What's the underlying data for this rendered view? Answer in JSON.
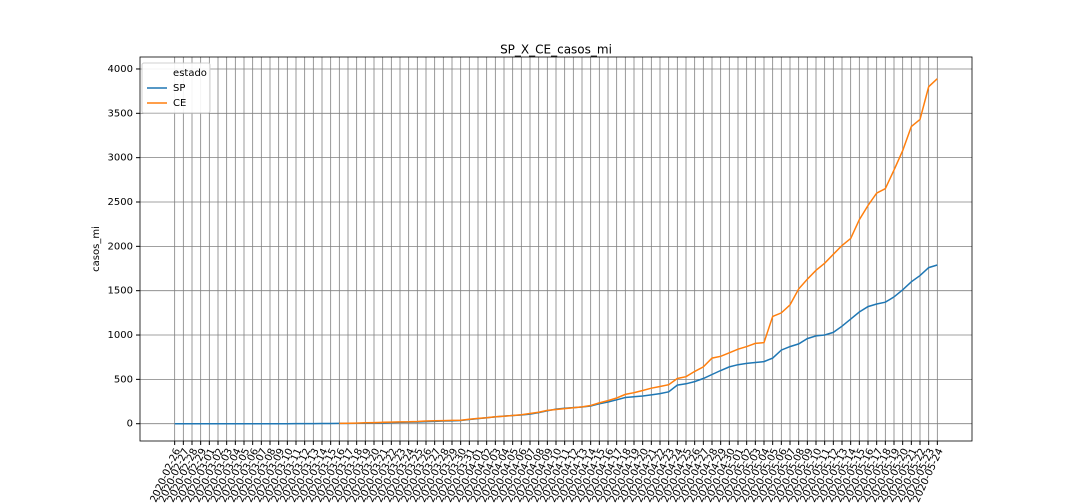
{
  "chart_data": {
    "type": "line",
    "title": "SP_X_CE_casos_mi",
    "y_label": "casos_mi",
    "categories": [
      "2020-02-26",
      "2020-02-27",
      "2020-02-28",
      "2020-02-29",
      "2020-03-01",
      "2020-03-02",
      "2020-03-03",
      "2020-03-04",
      "2020-03-05",
      "2020-03-06",
      "2020-03-07",
      "2020-03-08",
      "2020-03-09",
      "2020-03-10",
      "2020-03-11",
      "2020-03-12",
      "2020-03-13",
      "2020-03-14",
      "2020-03-15",
      "2020-03-16",
      "2020-03-17",
      "2020-03-18",
      "2020-03-19",
      "2020-03-20",
      "2020-03-21",
      "2020-03-22",
      "2020-03-23",
      "2020-03-24",
      "2020-03-25",
      "2020-03-26",
      "2020-03-27",
      "2020-03-28",
      "2020-03-29",
      "2020-03-30",
      "2020-03-31",
      "2020-04-01",
      "2020-04-02",
      "2020-04-03",
      "2020-04-04",
      "2020-04-05",
      "2020-04-06",
      "2020-04-07",
      "2020-04-08",
      "2020-04-09",
      "2020-04-10",
      "2020-04-11",
      "2020-04-12",
      "2020-04-13",
      "2020-04-14",
      "2020-04-15",
      "2020-04-16",
      "2020-04-17",
      "2020-04-18",
      "2020-04-19",
      "2020-04-20",
      "2020-04-21",
      "2020-04-22",
      "2020-04-23",
      "2020-04-24",
      "2020-04-25",
      "2020-04-26",
      "2020-04-27",
      "2020-04-28",
      "2020-04-29",
      "2020-04-30",
      "2020-05-01",
      "2020-05-02",
      "2020-05-03",
      "2020-05-04",
      "2020-05-05",
      "2020-05-06",
      "2020-05-07",
      "2020-05-08",
      "2020-05-09",
      "2020-05-10",
      "2020-05-11",
      "2020-05-12",
      "2020-05-13",
      "2020-05-14",
      "2020-05-15",
      "2020-05-16",
      "2020-05-17",
      "2020-05-18",
      "2020-05-19",
      "2020-05-20",
      "2020-05-21",
      "2020-05-22",
      "2020-05-23",
      "2020-05-24"
    ],
    "series": [
      {
        "name": "SP",
        "color": "#1f77b4",
        "values": [
          0,
          0,
          0,
          0,
          0,
          0,
          0,
          0,
          0,
          0,
          0,
          0,
          0,
          0,
          1,
          1,
          1,
          2,
          2,
          3,
          4,
          5,
          6,
          9,
          10,
          14,
          16,
          18,
          19,
          24,
          26,
          30,
          32,
          36,
          47,
          58,
          68,
          77,
          86,
          92,
          98,
          108,
          125,
          145,
          165,
          175,
          182,
          188,
          200,
          225,
          245,
          270,
          295,
          305,
          312,
          325,
          340,
          360,
          435,
          450,
          475,
          510,
          555,
          600,
          640,
          665,
          680,
          690,
          700,
          740,
          830,
          870,
          900,
          960,
          990,
          1000,
          1030,
          1100,
          1180,
          1260,
          1320,
          1350,
          1370,
          1430,
          1510,
          1600,
          1670,
          1760,
          1790
        ]
      },
      {
        "name": "CE",
        "color": "#ff7f0e",
        "values": [
          null,
          null,
          null,
          null,
          null,
          null,
          null,
          null,
          null,
          null,
          null,
          null,
          null,
          null,
          null,
          null,
          null,
          null,
          null,
          3,
          5,
          7,
          10,
          13,
          16,
          18,
          20,
          22,
          25,
          30,
          33,
          35,
          37,
          40,
          50,
          60,
          68,
          78,
          85,
          92,
          100,
          115,
          130,
          150,
          160,
          170,
          180,
          190,
          205,
          235,
          260,
          290,
          330,
          350,
          375,
          400,
          420,
          440,
          510,
          530,
          590,
          640,
          740,
          760,
          800,
          840,
          870,
          905,
          915,
          1210,
          1250,
          1340,
          1520,
          1630,
          1730,
          1810,
          1910,
          2010,
          2090,
          2300,
          2460,
          2600,
          2650,
          2860,
          3080,
          3350,
          3430,
          3800,
          3890
        ]
      }
    ],
    "legend_title": "estado",
    "legend": "upper left",
    "ylim": [
      -195,
      4135
    ],
    "yticks": [
      0,
      500,
      1000,
      1500,
      2000,
      2500,
      3000,
      3500,
      4000
    ],
    "grid": true
  }
}
